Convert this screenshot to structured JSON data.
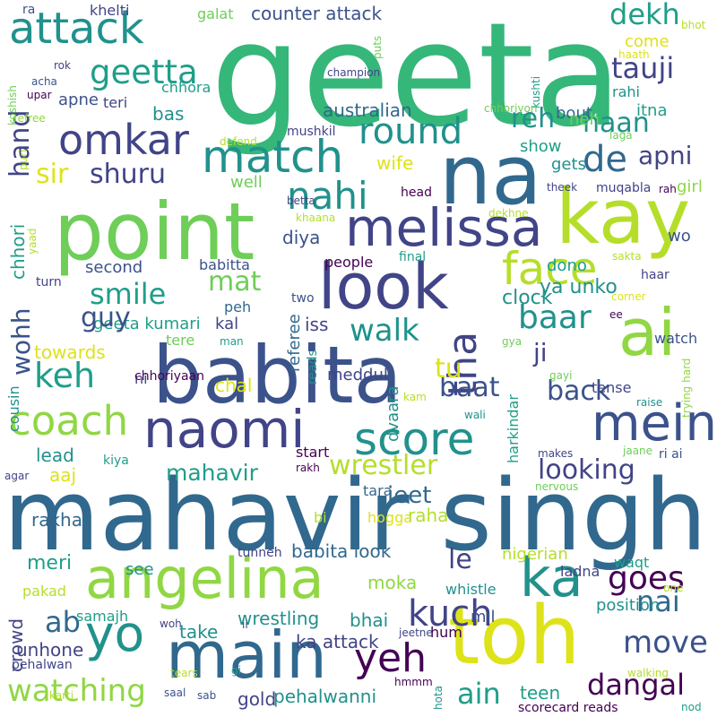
{
  "palette": {
    "purple": "#440154",
    "indigo": "#3b528b",
    "navy": "#414487",
    "blue": "#31688e",
    "teal": "#21918c",
    "teal2": "#1f9e89",
    "green": "#35b779",
    "lime": "#6ece58",
    "lime2": "#90d743",
    "yellow": "#b5de2b",
    "gold": "#dde318"
  },
  "words": [
    "geeta",
    "mahavir singh",
    "na",
    "toh",
    "kay",
    "ai",
    "babita",
    "point",
    "main",
    "look",
    "angelina",
    "melissa",
    "naomi",
    "coach",
    "attack",
    "omkar",
    "match",
    "mein",
    "yo",
    "score",
    "ka",
    "face",
    "tha",
    "round",
    "geetta",
    "de",
    "nahi",
    "kuch",
    "dangal",
    "watching",
    "ain",
    "wrestler",
    "looking",
    "smile",
    "walk",
    "baar",
    "yeh",
    "back",
    "reh",
    "haan",
    "tauji",
    "dekh",
    "apni",
    "goes",
    "move",
    "nai",
    "keh",
    "shuru",
    "sir",
    "hand",
    "wohh",
    "chhori",
    "ab",
    "counter attack",
    "australian",
    "mahavir",
    "le",
    "jeet",
    "baat",
    "mat",
    "geeta kumari",
    "babita look",
    "tu",
    "ji",
    "diya",
    "second",
    "babitta",
    "meddul",
    "referee",
    "people",
    "clock",
    "ya unko",
    "dono",
    "gets",
    "wife",
    "well",
    "show",
    "bas",
    "chhora",
    "apne",
    "teri",
    "chal",
    "lead",
    "aaj",
    "meri",
    "rakha",
    "towards",
    "crowd",
    "ni",
    "see",
    "tara",
    "hogga",
    "bi",
    "moka",
    "hum",
    "mil",
    "wrestling",
    "ka attack",
    "pehalwanni",
    "take",
    "gold",
    "kal",
    "peh",
    "tere",
    "guy",
    "raha",
    "dvaara",
    "iss",
    "start",
    "harkindar",
    "tense",
    "watch",
    "position",
    "nigerian",
    "ladna",
    "whistle",
    "waqt",
    "teen",
    "bhai",
    "samajh",
    "pakad",
    "unhone",
    "pehalwan",
    "cousin",
    "chhoriyaan",
    "bout",
    "come",
    "neh",
    "itna",
    "rahi",
    "girl",
    "wo",
    "khelti",
    "galat",
    "ra",
    "bhot",
    "haath",
    "puts",
    "kushti",
    "champion",
    "rok",
    "acha",
    "upar",
    "koshish",
    "refree",
    "chhoriyon",
    "laga",
    "defend",
    "mushkil",
    "head",
    "theek",
    "muqabla",
    "rah",
    "betta",
    "khaana",
    "dekhne",
    "yaad",
    "puri",
    "final",
    "sakta",
    "haar",
    "corner",
    "ee",
    "turn",
    "two",
    "man",
    "gya",
    "reads",
    "kam",
    "gayi",
    "trying hard",
    "raise",
    "wali",
    "makes",
    "jaane",
    "ri ai",
    "rakh",
    "agar",
    "kiya",
    "nervous",
    "tunneh",
    "one",
    "jeetne",
    "hota",
    "walking",
    "hmmm",
    "woh",
    "ii",
    "gi",
    "tears",
    "saal",
    "sab",
    "karti",
    "nod",
    "scorecard reads"
  ]
}
